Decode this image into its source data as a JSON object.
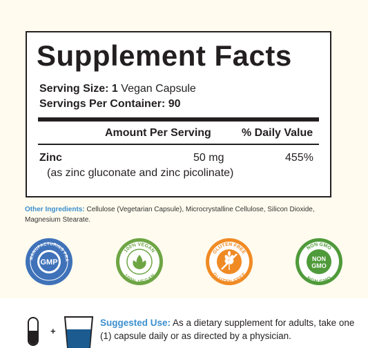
{
  "facts": {
    "title": "Supplement Facts",
    "serving_size_label": "Serving Size: 1",
    "serving_size_value": " Vegan Capsule",
    "servings_per_container": "Servings Per Container: 90",
    "header_amount": "Amount Per Serving",
    "header_dv": "% Daily Value",
    "nutrients": [
      {
        "name": "Zinc",
        "amount": "50 mg",
        "daily_value": "455%",
        "source": "(as zinc gluconate and zinc picolinate)"
      }
    ]
  },
  "ingredients": {
    "label": "Other Ingredients:",
    "text": " Cellulose (Vegetarian Capsule), Microcrystalline Cellulose, Silicon Dioxide, Magnesium Stearate."
  },
  "badges": [
    {
      "name": "gmp-badge",
      "center_text": "GMP",
      "ring_text": "GOOD MANUFACTURING PRACTICE",
      "color": "#3f72b9"
    },
    {
      "name": "vegan-badge",
      "top_text": "100% VEGAN",
      "bottom_text": "100% VEGAN",
      "color": "#6da544"
    },
    {
      "name": "gluten-free-badge",
      "top_text": "GLUTEN FREE",
      "bottom_text": "GLUTEN FREE",
      "color": "#f08a24"
    },
    {
      "name": "non-gmo-badge",
      "top_text": "NON GMO",
      "center_top": "NON",
      "center_bottom": "GMO",
      "bottom_text": "NON GMO",
      "color": "#4f9a3a"
    }
  ],
  "suggested_use": {
    "plus": "+",
    "label": "Suggested Use:",
    "text": " As a dietary supplement for adults, take one (1) capsule daily or as directed by a physician."
  }
}
